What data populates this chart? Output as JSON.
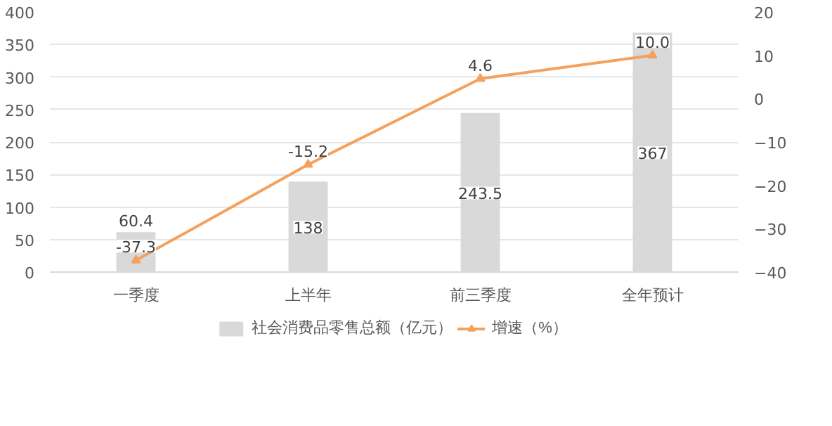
{
  "chart_data": {
    "type": "bar",
    "categories": [
      "一季度",
      "上半年",
      "前三季度",
      "全年预计"
    ],
    "series": [
      {
        "name": "社会消费品零售总额（亿元）",
        "color": "#d9d9d9",
        "values": [
          60.4,
          138,
          243.5,
          367
        ],
        "value_labels": [
          "60.4",
          "138",
          "243.5",
          "367"
        ]
      },
      {
        "name": "增速（%）",
        "color": "#f4a15d",
        "type": "line",
        "axis": "y2",
        "marker": "triangle",
        "values": [
          -37.3,
          -15.2,
          4.6,
          10.0
        ],
        "value_labels": [
          "-37.3",
          "-15.2",
          "4.6",
          "10.0"
        ]
      }
    ],
    "ylim": [
      0,
      400
    ],
    "yticks": [
      0,
      50,
      100,
      150,
      200,
      250,
      300,
      350,
      400
    ],
    "y2lim": [
      -40,
      20
    ],
    "y2ticks": [
      -40,
      -30,
      -20,
      -10,
      0,
      10,
      20
    ],
    "grid": "y",
    "legend": "bottom"
  }
}
